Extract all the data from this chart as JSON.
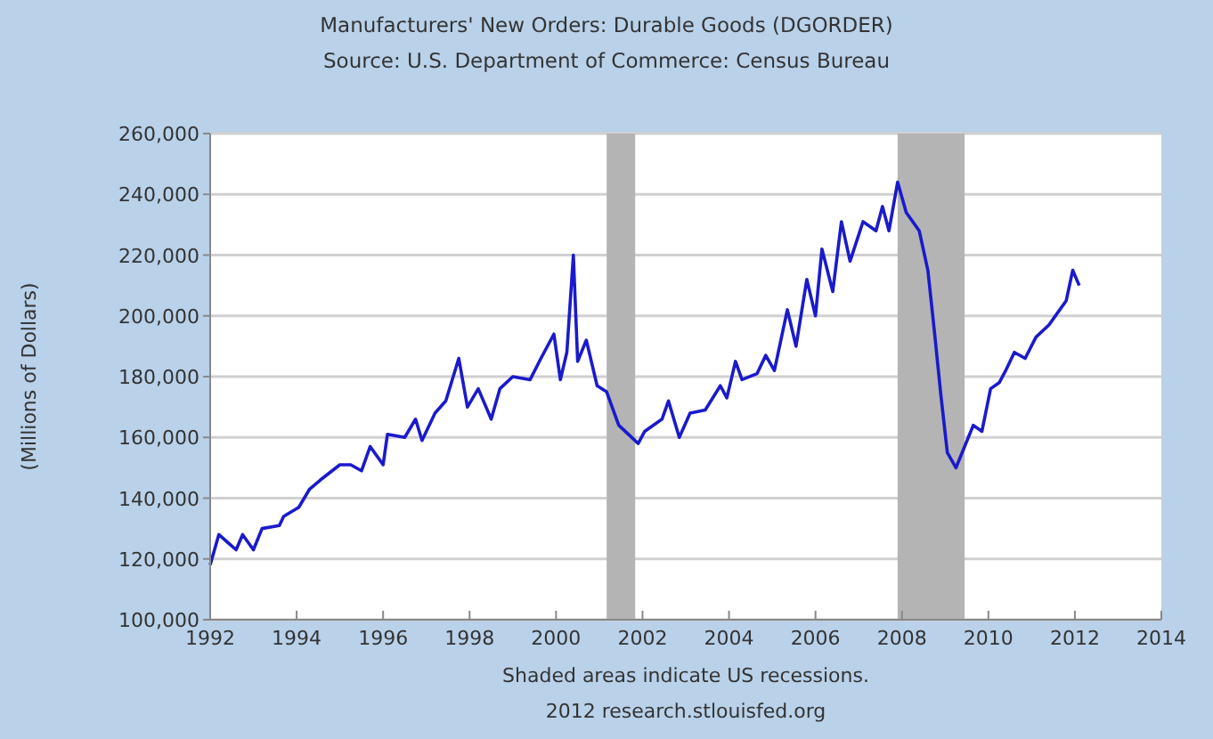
{
  "chart_data": {
    "type": "line",
    "title": "Manufacturers' New Orders: Durable Goods (DGORDER)",
    "subtitle": "Source: U.S. Department of Commerce: Census Bureau",
    "ylabel": "(Millions of Dollars)",
    "annotations": [
      "Shaded areas indicate US recessions.",
      "2012 research.stlouisfed.org"
    ],
    "xlim": [
      1992,
      2014
    ],
    "xticks": [
      1992,
      1994,
      1996,
      1998,
      2000,
      2002,
      2004,
      2006,
      2008,
      2010,
      2012,
      2014
    ],
    "ylim": [
      100000,
      260000
    ],
    "yticks": [
      {
        "value": 100000,
        "label": "100,000"
      },
      {
        "value": 120000,
        "label": "120,000"
      },
      {
        "value": 140000,
        "label": "140,000"
      },
      {
        "value": 160000,
        "label": "160,000"
      },
      {
        "value": 180000,
        "label": "180,000"
      },
      {
        "value": 200000,
        "label": "200,000"
      },
      {
        "value": 220000,
        "label": "220,000"
      },
      {
        "value": 240000,
        "label": "240,000"
      },
      {
        "value": 260000,
        "label": "260,000"
      }
    ],
    "grid": "y",
    "marker": "none",
    "line_style": "solid",
    "bands": [
      {
        "axis": "x",
        "from": 2001.17,
        "to": 2001.83,
        "color": "#b4b4b4"
      },
      {
        "axis": "x",
        "from": 2007.9,
        "to": 2009.45,
        "color": "#b4b4b4"
      }
    ],
    "series": [
      {
        "color": "#1a1acc",
        "x": [
          1992.0,
          1992.2,
          1992.6,
          1992.75,
          1993.0,
          1993.2,
          1993.6,
          1993.7,
          1994.05,
          1994.3,
          1994.55,
          1995.0,
          1995.25,
          1995.5,
          1995.7,
          1996.0,
          1996.1,
          1996.5,
          1996.75,
          1996.9,
          1997.2,
          1997.45,
          1997.75,
          1997.95,
          1998.2,
          1998.5,
          1998.7,
          1999.0,
          1999.4,
          1999.65,
          1999.95,
          2000.1,
          2000.25,
          2000.4,
          2000.5,
          2000.7,
          2000.95,
          2001.17,
          2001.45,
          2001.9,
          2002.05,
          2002.45,
          2002.6,
          2002.85,
          2003.1,
          2003.45,
          2003.8,
          2003.95,
          2004.15,
          2004.3,
          2004.65,
          2004.85,
          2005.05,
          2005.35,
          2005.55,
          2005.8,
          2006.0,
          2006.15,
          2006.4,
          2006.6,
          2006.8,
          2007.1,
          2007.4,
          2007.55,
          2007.7,
          2007.9,
          2008.1,
          2008.4,
          2008.6,
          2008.75,
          2008.9,
          2009.05,
          2009.25,
          2009.45,
          2009.65,
          2009.85,
          2010.05,
          2010.25,
          2010.4,
          2010.6,
          2010.85,
          2011.1,
          2011.4,
          2011.6,
          2011.8,
          2011.95,
          2012.1
        ],
        "values": [
          118000,
          128000,
          123000,
          128000,
          123000,
          130000,
          131000,
          134000,
          137000,
          143000,
          146000,
          151000,
          151000,
          149000,
          157000,
          151000,
          161000,
          160000,
          166000,
          159000,
          168000,
          172000,
          186000,
          170000,
          176000,
          166000,
          176000,
          180000,
          179000,
          186000,
          194000,
          179000,
          188000,
          220000,
          185000,
          192000,
          177000,
          175000,
          164000,
          158000,
          162000,
          166000,
          172000,
          160000,
          168000,
          169000,
          177000,
          173000,
          185000,
          179000,
          181000,
          187000,
          182000,
          202000,
          190000,
          212000,
          200000,
          222000,
          208000,
          231000,
          218000,
          231000,
          228000,
          236000,
          228000,
          244000,
          234000,
          228000,
          215000,
          195000,
          174000,
          155000,
          150000,
          157000,
          164000,
          162000,
          176000,
          178000,
          182000,
          188000,
          186000,
          193000,
          197000,
          201000,
          205000,
          215000,
          210000
        ]
      }
    ]
  }
}
